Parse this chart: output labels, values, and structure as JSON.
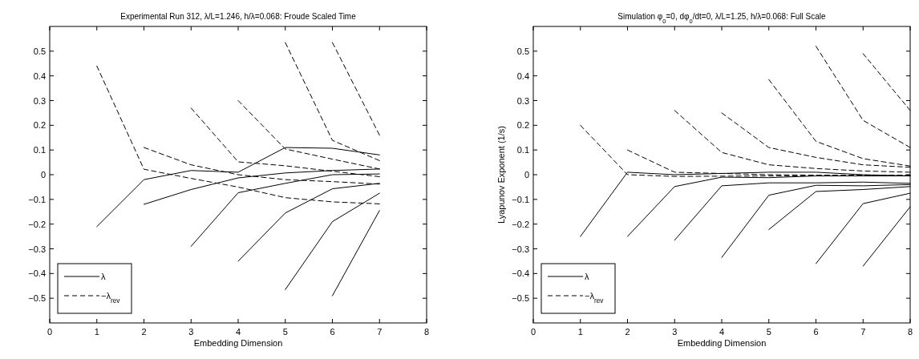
{
  "chart_data": [
    {
      "type": "line",
      "title": "Experimental Run 312, λ/L=1.246, h/λ=0.068: Froude Scaled Time",
      "xlabel": "Embedding Dimension",
      "xlim": [
        0,
        8
      ],
      "xticks": [
        0,
        1,
        2,
        3,
        4,
        5,
        6,
        7,
        8
      ],
      "ylim": [
        -0.6,
        0.6
      ],
      "yticks": [
        {
          "value": -0.5,
          "label": "−0.5"
        },
        {
          "value": -0.4,
          "label": "−0.4"
        },
        {
          "value": -0.3,
          "label": "−0.3"
        },
        {
          "value": -0.2,
          "label": "−0.2"
        },
        {
          "value": -0.1,
          "label": "−0.1"
        },
        0,
        0.1,
        0.2,
        0.3,
        0.4,
        0.5
      ],
      "grid": false,
      "legend": "bottom left",
      "series": [
        {
          "name": "λ",
          "color": "#000000",
          "line_style": "solid",
          "x": [
            1,
            2,
            3,
            4,
            5,
            6,
            7
          ],
          "values": [
            -0.21,
            -0.02,
            0.017,
            0.01,
            0.11,
            0.107,
            0.08
          ]
        },
        {
          "color": "#000000",
          "line_style": "solid",
          "x": [
            2,
            3,
            4,
            5,
            6,
            7
          ],
          "values": [
            -0.12,
            -0.06,
            -0.013,
            0.007,
            0.017,
            0.023
          ]
        },
        {
          "color": "#000000",
          "line_style": "solid",
          "x": [
            3,
            4,
            5,
            6,
            7
          ],
          "values": [
            -0.29,
            -0.073,
            -0.035,
            0.0,
            0.003
          ]
        },
        {
          "color": "#000000",
          "line_style": "solid",
          "x": [
            4,
            5,
            6,
            7
          ],
          "values": [
            -0.35,
            -0.155,
            -0.057,
            -0.035
          ]
        },
        {
          "color": "#000000",
          "line_style": "solid",
          "x": [
            5,
            6,
            7
          ],
          "values": [
            -0.465,
            -0.19,
            -0.075
          ]
        },
        {
          "color": "#000000",
          "line_style": "solid",
          "x": [
            6,
            7
          ],
          "values": [
            -0.49,
            -0.145
          ]
        },
        {
          "name": "−λ$_{rev}$",
          "color": "#000000",
          "line_style": "dashed",
          "x": [
            1,
            2,
            3,
            4,
            5,
            6,
            7
          ],
          "values": [
            0.44,
            0.022,
            -0.015,
            -0.05,
            -0.093,
            -0.11,
            -0.118
          ]
        },
        {
          "color": "#000000",
          "line_style": "dashed",
          "x": [
            2,
            3,
            4,
            5,
            6,
            7
          ],
          "values": [
            0.11,
            0.04,
            0.0,
            -0.02,
            -0.028,
            -0.038
          ]
        },
        {
          "color": "#000000",
          "line_style": "dashed",
          "x": [
            3,
            4,
            5,
            6,
            7
          ],
          "values": [
            0.27,
            0.052,
            0.036,
            0.014,
            -0.008
          ]
        },
        {
          "color": "#000000",
          "line_style": "dashed",
          "x": [
            4,
            5,
            6,
            7
          ],
          "values": [
            0.3,
            0.104,
            0.063,
            0.023
          ]
        },
        {
          "color": "#000000",
          "line_style": "dashed",
          "x": [
            5,
            6,
            7
          ],
          "values": [
            0.535,
            0.139,
            0.057
          ]
        },
        {
          "color": "#000000",
          "line_style": "dashed",
          "x": [
            6,
            7
          ],
          "values": [
            0.535,
            0.16
          ]
        }
      ]
    },
    {
      "type": "line",
      "title": "Simulation φ$_{0}$=0, dφ$_{0}$/dt=0, λ/L=1.25, h/λ=0.068: Full Scale",
      "xlabel": "Embedding Dimension",
      "ylabel": "Lyapunov Exponent (1/s)",
      "xlim": [
        0,
        8
      ],
      "xticks": [
        0,
        1,
        2,
        3,
        4,
        5,
        6,
        7,
        8
      ],
      "ylim": [
        -0.6,
        0.6
      ],
      "yticks": [
        {
          "value": -0.5,
          "label": "−0.5"
        },
        {
          "value": -0.4,
          "label": "−0.4"
        },
        {
          "value": -0.3,
          "label": "−0.3"
        },
        {
          "value": -0.2,
          "label": "−0.2"
        },
        {
          "value": -0.1,
          "label": "−0.1"
        },
        0,
        0.1,
        0.2,
        0.3,
        0.4,
        0.5
      ],
      "grid": false,
      "legend": "bottom left",
      "series": [
        {
          "name": "λ",
          "color": "#000000",
          "line_style": "solid",
          "x": [
            1,
            2,
            3,
            4,
            5,
            6,
            7,
            8
          ],
          "values": [
            -0.25,
            0.01,
            0.0,
            0.005,
            0.01,
            0.01,
            0.0,
            -0.005
          ]
        },
        {
          "color": "#000000",
          "line_style": "solid",
          "x": [
            2,
            3,
            4,
            5,
            6,
            7,
            8
          ],
          "values": [
            -0.25,
            -0.048,
            -0.01,
            -0.012,
            -0.005,
            -0.005,
            -0.005
          ]
        },
        {
          "color": "#000000",
          "line_style": "solid",
          "x": [
            3,
            4,
            5,
            6,
            7,
            8
          ],
          "values": [
            -0.265,
            -0.045,
            -0.033,
            -0.033,
            -0.03,
            -0.035
          ]
        },
        {
          "color": "#000000",
          "line_style": "solid",
          "x": [
            4,
            5,
            6,
            7,
            8
          ],
          "values": [
            -0.335,
            -0.083,
            -0.043,
            -0.045,
            -0.04
          ]
        },
        {
          "color": "#000000",
          "line_style": "solid",
          "x": [
            5,
            6,
            7,
            8
          ],
          "values": [
            -0.222,
            -0.068,
            -0.06,
            -0.048
          ]
        },
        {
          "color": "#000000",
          "line_style": "solid",
          "x": [
            6,
            7,
            8
          ],
          "values": [
            -0.36,
            -0.117,
            -0.075
          ]
        },
        {
          "color": "#000000",
          "line_style": "solid",
          "x": [
            7,
            8
          ],
          "values": [
            -0.37,
            -0.13
          ]
        },
        {
          "name": "−λ$_{rev}$",
          "color": "#000000",
          "line_style": "dashed",
          "x": [
            1,
            2,
            3,
            4,
            5,
            6,
            7,
            8
          ],
          "values": [
            0.2,
            0.0,
            -0.007,
            -0.006,
            -0.005,
            -0.004,
            -0.003,
            -0.003
          ]
        },
        {
          "color": "#000000",
          "line_style": "dashed",
          "x": [
            2,
            3,
            4,
            5,
            6,
            7,
            8
          ],
          "values": [
            0.1,
            0.01,
            0.005,
            0.0,
            -0.002,
            -0.003,
            -0.002
          ]
        },
        {
          "color": "#000000",
          "line_style": "dashed",
          "x": [
            3,
            4,
            5,
            6,
            7,
            8
          ],
          "values": [
            0.26,
            0.09,
            0.04,
            0.025,
            0.015,
            0.01
          ]
        },
        {
          "color": "#000000",
          "line_style": "dashed",
          "x": [
            4,
            5,
            6,
            7,
            8
          ],
          "values": [
            0.25,
            0.11,
            0.07,
            0.04,
            0.03
          ]
        },
        {
          "color": "#000000",
          "line_style": "dashed",
          "x": [
            5,
            6,
            7,
            8
          ],
          "values": [
            0.385,
            0.135,
            0.065,
            0.035
          ]
        },
        {
          "color": "#000000",
          "line_style": "dashed",
          "x": [
            6,
            7,
            8
          ],
          "values": [
            0.52,
            0.22,
            0.11
          ]
        },
        {
          "color": "#000000",
          "line_style": "dashed",
          "x": [
            7,
            8
          ],
          "values": [
            0.49,
            0.26
          ]
        }
      ]
    }
  ]
}
